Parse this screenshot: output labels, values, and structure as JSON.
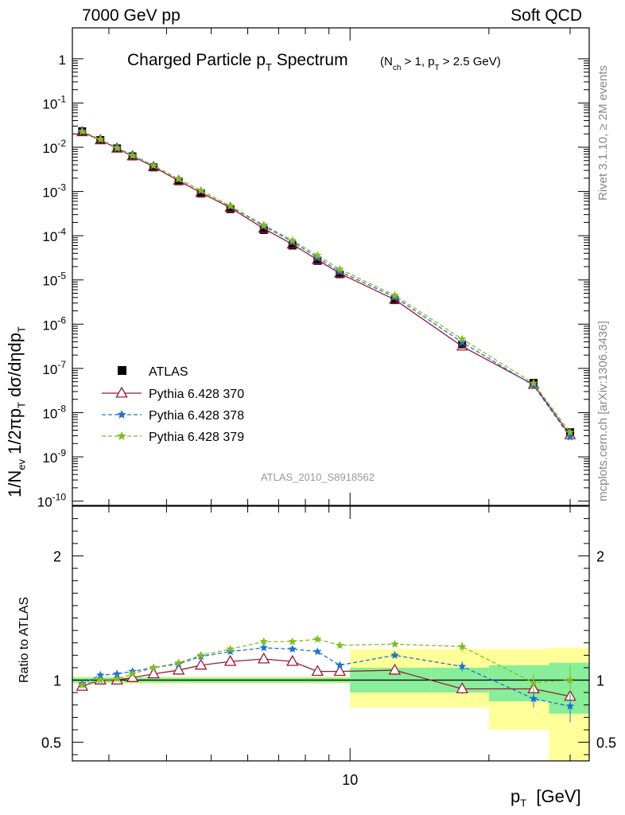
{
  "header": {
    "left": "7000 GeV pp",
    "right": "Soft QCD"
  },
  "side_labels": {
    "rivet": "Rivet 3.1.10, ≥ 2M events",
    "mcplots": "mcplots.cern.ch [arXiv:1306.3436]"
  },
  "analysis_tag": "ATLAS_2010_S8918562",
  "main_title": {
    "text": "Charged Particle p",
    "sub": "T",
    "tail": " Spectrum",
    "cut": "(N",
    "cut_sub1": "ch",
    "cut_mid": " > 1, p",
    "cut_sub2": "T",
    "cut_tail": " > 2.5 GeV)"
  },
  "colors": {
    "atlas": "#000000",
    "p370": "#9b1b30",
    "p378": "#1e73d2",
    "p379": "#7fbf1e",
    "band_inner": "#88ee99",
    "band_outer": "#ffff99"
  },
  "chart_data": [
    {
      "type": "scatter",
      "title": "Charged Particle pT Spectrum (Nch > 1, pT > 2.5 GeV)",
      "ylabel": "1/Nev 1/2πpT dσ/dηdpT",
      "xlabel": "pT [GeV]",
      "xscale": "log",
      "yscale": "log",
      "xlim": [
        2.5,
        33
      ],
      "ylim": [
        8e-11,
        5
      ],
      "x_ticks": [
        10
      ],
      "y_ticks": [
        1e-10,
        1e-09,
        1e-08,
        1e-07,
        1e-06,
        1e-05,
        0.0001,
        0.001,
        0.01,
        0.1,
        1
      ],
      "y_tick_labels": [
        "10^-10",
        "10^-9",
        "10^-8",
        "10^-7",
        "10^-6",
        "10^-5",
        "10^-4",
        "10^-3",
        "10^-2",
        "10^-1",
        "1"
      ],
      "x": [
        2.625,
        2.875,
        3.125,
        3.375,
        3.75,
        4.25,
        4.75,
        5.5,
        6.5,
        7.5,
        8.5,
        9.5,
        12.5,
        17.5,
        25,
        30
      ],
      "series": [
        {
          "name": "ATLAS",
          "marker": "square",
          "values": [
            0.023,
            0.0145,
            0.0094,
            0.0062,
            0.0035,
            0.0017,
            0.0009,
            0.0004,
            0.000135,
            6e-05,
            2.7e-05,
            1.35e-05,
            3.5e-06,
            3.5e-07,
            4.7e-08,
            3.6e-09
          ]
        },
        {
          "name": "Pythia 6.428 370",
          "marker": "triangle",
          "line": "solid",
          "values": [
            0.022,
            0.0145,
            0.0094,
            0.0063,
            0.0036,
            0.00175,
            0.00094,
            0.00043,
            0.000145,
            6.4e-05,
            2.85e-05,
            1.4e-05,
            3.6e-06,
            3.15e-07,
            4.3e-08,
            3.1e-09
          ]
        },
        {
          "name": "Pythia 6.428 378",
          "marker": "star",
          "line": "dashed",
          "values": [
            0.023,
            0.015,
            0.0098,
            0.0066,
            0.00385,
            0.0019,
            0.00105,
            0.00046,
            0.000165,
            7.3e-05,
            3.2e-05,
            1.55e-05,
            4.1e-06,
            3.9e-07,
            4.1e-08,
            2.8e-09
          ]
        },
        {
          "name": "Pythia 6.428 379",
          "marker": "star",
          "line": "dashed",
          "values": [
            0.0225,
            0.015,
            0.0095,
            0.0064,
            0.0038,
            0.0019,
            0.00105,
            0.00047,
            0.000175,
            7.8e-05,
            3.6e-05,
            1.75e-05,
            4.5e-06,
            4.6e-07,
            4.6e-08,
            3.6e-09
          ]
        }
      ],
      "legend": {
        "placement": "bottom-left",
        "entries": [
          "ATLAS",
          "Pythia 6.428 370",
          "Pythia 6.428 378",
          "Pythia 6.428 379"
        ]
      }
    },
    {
      "type": "line",
      "ylabel": "Ratio to ATLAS",
      "xlabel": "pT [GeV]",
      "xscale": "log",
      "xlim": [
        2.5,
        33
      ],
      "ylim": [
        0.35,
        2.4
      ],
      "y_ticks": [
        0.5,
        1,
        2
      ],
      "y_tick_labels": [
        "0.5",
        "1",
        "2"
      ],
      "x_ticks": [
        10
      ],
      "x_tick_labels": [
        "10"
      ],
      "x": [
        2.625,
        2.875,
        3.125,
        3.375,
        3.75,
        4.25,
        4.75,
        5.5,
        6.5,
        7.5,
        8.5,
        9.5,
        12.5,
        17.5,
        25,
        30
      ],
      "bands": [
        {
          "x0": 2.5,
          "x1": 10,
          "inner": [
            0.98,
            1.02
          ],
          "outer": [
            0.97,
            1.03
          ]
        },
        {
          "x0": 10,
          "x1": 15,
          "inner": [
            0.9,
            1.1
          ],
          "outer": [
            0.78,
            1.25
          ]
        },
        {
          "x0": 15,
          "x1": 20,
          "inner": [
            0.9,
            1.1
          ],
          "outer": [
            0.78,
            1.25
          ]
        },
        {
          "x0": 20,
          "x1": 27,
          "inner": [
            0.83,
            1.12
          ],
          "outer": [
            0.6,
            1.25
          ]
        },
        {
          "x0": 27,
          "x1": 33,
          "inner": [
            0.73,
            1.14
          ],
          "outer": [
            0.34,
            1.26
          ]
        }
      ],
      "series": [
        {
          "name": "Pythia 6.428 370",
          "values": [
            0.95,
            1.0,
            1.0,
            1.02,
            1.05,
            1.08,
            1.12,
            1.15,
            1.17,
            1.15,
            1.07,
            1.07,
            1.08,
            0.93,
            0.93,
            0.87
          ],
          "errors": [
            0.01,
            0.01,
            0.01,
            0.01,
            0.01,
            0.01,
            0.01,
            0.01,
            0.01,
            0.01,
            0.02,
            0.02,
            0.02,
            0.04,
            0.07,
            0.09
          ]
        },
        {
          "name": "Pythia 6.428 378",
          "values": [
            0.97,
            1.04,
            1.05,
            1.07,
            1.1,
            1.13,
            1.19,
            1.23,
            1.26,
            1.25,
            1.23,
            1.12,
            1.2,
            1.11,
            0.85,
            0.79
          ],
          "errors": [
            0.01,
            0.01,
            0.01,
            0.01,
            0.01,
            0.01,
            0.01,
            0.01,
            0.02,
            0.02,
            0.02,
            0.02,
            0.02,
            0.04,
            0.07,
            0.13
          ]
        },
        {
          "name": "Pythia 6.428 379",
          "values": [
            0.96,
            1.0,
            1.01,
            1.05,
            1.1,
            1.14,
            1.2,
            1.25,
            1.31,
            1.31,
            1.33,
            1.28,
            1.29,
            1.27,
            0.98,
            1.0
          ],
          "errors": [
            0.01,
            0.01,
            0.01,
            0.01,
            0.01,
            0.01,
            0.01,
            0.01,
            0.02,
            0.02,
            0.02,
            0.02,
            0.02,
            0.04,
            0.07,
            0.12
          ]
        }
      ]
    }
  ]
}
